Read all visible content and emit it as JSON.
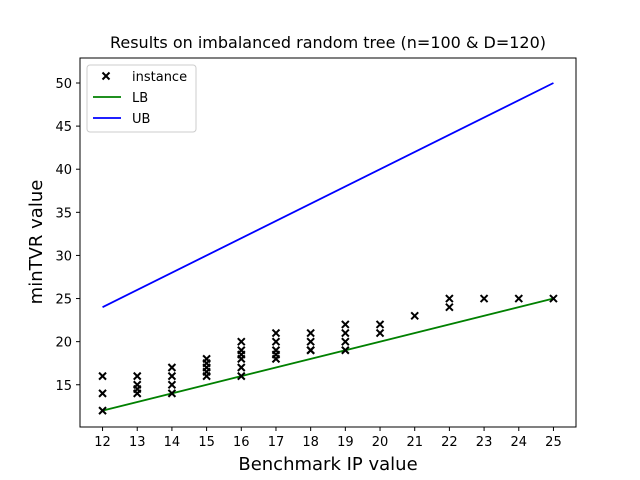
{
  "chart_data": {
    "type": "scatter",
    "title": "Results on imbalanced random tree (n=100 & D=120)",
    "xlabel": "Benchmark IP value",
    "ylabel": "minTVR value",
    "xlim": [
      11.35,
      25.65
    ],
    "ylim": [
      10.1,
      52.9
    ],
    "xticks": [
      12,
      13,
      14,
      15,
      16,
      17,
      18,
      19,
      20,
      21,
      22,
      23,
      24,
      25
    ],
    "yticks": [
      15,
      20,
      25,
      30,
      35,
      40,
      45,
      50
    ],
    "grid": false,
    "legend_position": "top-left",
    "series": [
      {
        "name": "instance",
        "kind": "scatter",
        "marker": "x",
        "color": "#000000",
        "points": [
          [
            12,
            16
          ],
          [
            12,
            14
          ],
          [
            12,
            12
          ],
          [
            13,
            16
          ],
          [
            13,
            15
          ],
          [
            13,
            14.5
          ],
          [
            13,
            14
          ],
          [
            14,
            17
          ],
          [
            14,
            16
          ],
          [
            14,
            15
          ],
          [
            14,
            14
          ],
          [
            15,
            18
          ],
          [
            15,
            17.5
          ],
          [
            15,
            17
          ],
          [
            15,
            16.5
          ],
          [
            15,
            16
          ],
          [
            16,
            20
          ],
          [
            16,
            19
          ],
          [
            16,
            18.5
          ],
          [
            16,
            18
          ],
          [
            16,
            17
          ],
          [
            16,
            16
          ],
          [
            17,
            21
          ],
          [
            17,
            20
          ],
          [
            17,
            19
          ],
          [
            17,
            18.5
          ],
          [
            17,
            18
          ],
          [
            18,
            21
          ],
          [
            18,
            20
          ],
          [
            18,
            19
          ],
          [
            18,
            19
          ],
          [
            19,
            22
          ],
          [
            19,
            21
          ],
          [
            19,
            20
          ],
          [
            19,
            19
          ],
          [
            20,
            22
          ],
          [
            20,
            21
          ],
          [
            21,
            23
          ],
          [
            22,
            25
          ],
          [
            22,
            24
          ],
          [
            23,
            25
          ],
          [
            24,
            25
          ],
          [
            25,
            25
          ]
        ]
      },
      {
        "name": "LB",
        "kind": "line",
        "color": "#008000",
        "x": [
          12,
          25
        ],
        "y": [
          12,
          25
        ]
      },
      {
        "name": "UB",
        "kind": "line",
        "color": "#0000ff",
        "x": [
          12,
          25
        ],
        "y": [
          24,
          50
        ]
      }
    ]
  }
}
